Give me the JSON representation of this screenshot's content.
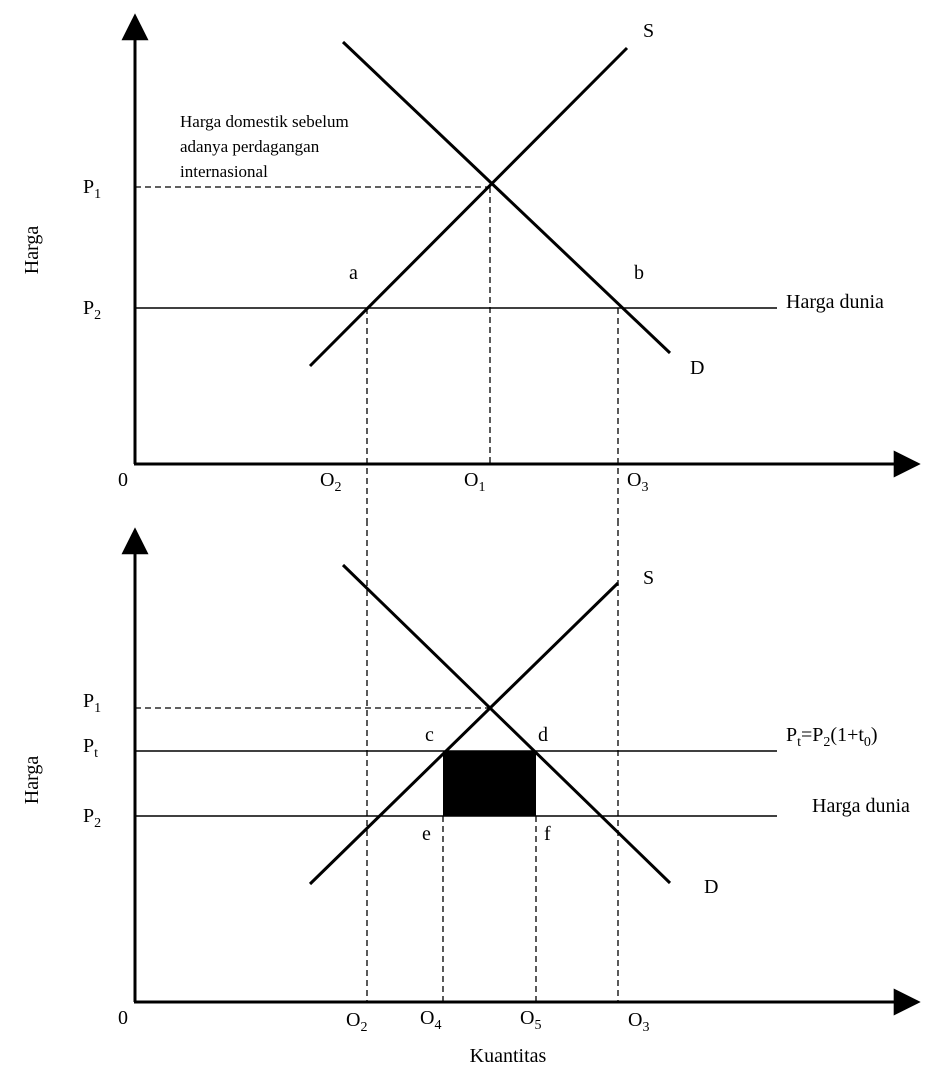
{
  "top_panel": {
    "y_axis_label": "Harga",
    "origin": "0",
    "price_p1": "P",
    "price_p1_sub": "1",
    "price_p2": "P",
    "price_p2_sub": "2",
    "supply_label": "S",
    "demand_label": "D",
    "point_a": "a",
    "point_b": "b",
    "world_price_label": "Harga dunia",
    "annotation": [
      "Harga domestik sebelum",
      "adanya perdagangan",
      "internasional"
    ],
    "qty_o2": "O",
    "qty_o2_sub": "2",
    "qty_o1": "O",
    "qty_o1_sub": "1",
    "qty_o3": "O",
    "qty_o3_sub": "3"
  },
  "bottom_panel": {
    "y_axis_label": "Harga",
    "origin": "0",
    "price_p1": "P",
    "price_p1_sub": "1",
    "price_pt": "P",
    "price_pt_sub": "t",
    "price_p2": "P",
    "price_p2_sub": "2",
    "supply_label": "S",
    "demand_label": "D",
    "point_c": "c",
    "point_d": "d",
    "point_e": "e",
    "point_f": "f",
    "tariff_formula": {
      "a": "P",
      "a_sub": "t",
      "b": "=P",
      "b_sub": "2",
      "c": "(1+t",
      "c_sub": "0",
      "d": ")"
    },
    "world_price_label": "Harga dunia",
    "qty_o2": "O",
    "qty_o2_sub": "2",
    "qty_o4": "O",
    "qty_o4_sub": "4",
    "qty_o5": "O",
    "qty_o5_sub": "5",
    "qty_o3": "O",
    "qty_o3_sub": "3",
    "x_axis_label": "Kuantitas"
  }
}
